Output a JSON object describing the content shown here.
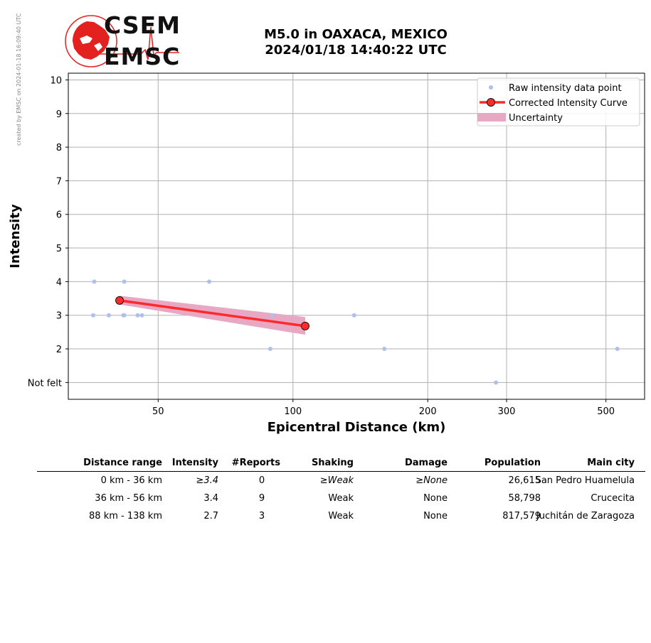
{
  "credit": "created by EMSC on 2024-01-18 16:09:40 UTC",
  "logo": {
    "text_top": "CSEM",
    "text_bottom": "EMSC",
    "color": "#e3221f"
  },
  "title": {
    "line1": "M5.0 in OAXACA, MEXICO",
    "line2": "2024/01/18 14:40:22 UTC"
  },
  "chart_data": {
    "type": "scatter",
    "xlabel": "Epicentral Distance (km)",
    "ylabel": "Intensity",
    "xscale": "log",
    "xlim": [
      31.5,
      610
    ],
    "ylim": [
      0.5,
      10.2
    ],
    "xticks": [
      50,
      100,
      200,
      300,
      500
    ],
    "yticks": [
      {
        "v": 1,
        "label": "Not felt"
      },
      {
        "v": 2,
        "label": "2"
      },
      {
        "v": 3,
        "label": "3"
      },
      {
        "v": 4,
        "label": "4"
      },
      {
        "v": 5,
        "label": "5"
      },
      {
        "v": 6,
        "label": "6"
      },
      {
        "v": 7,
        "label": "7"
      },
      {
        "v": 8,
        "label": "8"
      },
      {
        "v": 9,
        "label": "9"
      },
      {
        "v": 10,
        "label": "10"
      }
    ],
    "grid": true,
    "legend_position": "top-right",
    "series": [
      {
        "name": "Raw intensity data point",
        "kind": "points",
        "color": "#aec0ec",
        "points": [
          [
            36,
            4
          ],
          [
            42,
            4
          ],
          [
            65,
            4
          ],
          [
            35.8,
            3
          ],
          [
            38.8,
            3
          ],
          [
            41.8,
            3
          ],
          [
            42,
            3
          ],
          [
            45,
            3
          ],
          [
            46,
            3
          ],
          [
            90,
            3
          ],
          [
            137,
            3
          ],
          [
            89,
            2
          ],
          [
            160,
            2
          ],
          [
            530,
            2
          ],
          [
            284,
            1
          ]
        ]
      },
      {
        "name": "Corrected Intensity Curve",
        "kind": "line",
        "color": "#ff2a2a",
        "points": [
          [
            41,
            3.44
          ],
          [
            106.5,
            2.68
          ]
        ]
      },
      {
        "name": "Uncertainty",
        "kind": "band",
        "color": "#e8a8c4",
        "upper": [
          [
            41,
            3.58
          ],
          [
            106.5,
            2.95
          ]
        ],
        "lower": [
          [
            41,
            3.32
          ],
          [
            106.5,
            2.42
          ]
        ]
      }
    ]
  },
  "table": {
    "headers": [
      "Distance range",
      "Intensity",
      "#Reports",
      "Shaking",
      "Damage",
      "Population",
      "Main city"
    ],
    "rows": [
      [
        "0 km -   36 km",
        "≥3.4",
        "0",
        "≥Weak",
        "≥None",
        "26,615",
        "San Pedro Huamelula"
      ],
      [
        "36 km -   56 km",
        "3.4",
        "9",
        "Weak",
        "None",
        "58,798",
        "Crucecita"
      ],
      [
        "88 km -  138 km",
        "2.7",
        "3",
        "Weak",
        "None",
        "817,579",
        "Juchitán de Zaragoza"
      ]
    ]
  }
}
